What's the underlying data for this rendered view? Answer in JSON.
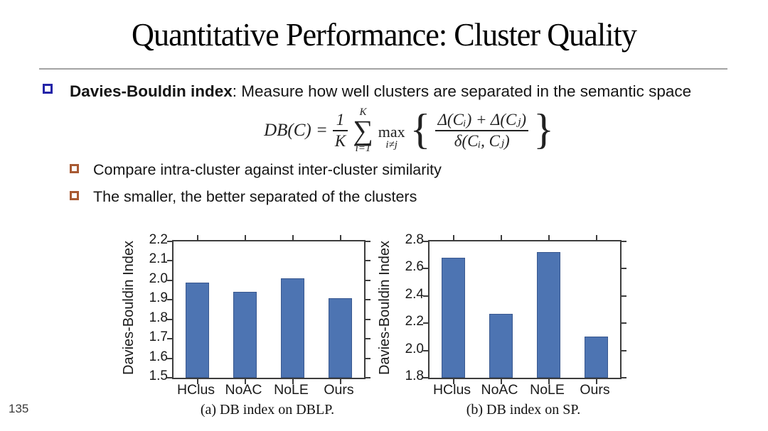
{
  "page_number": "135",
  "title": "Quantitative Performance: Cluster Quality",
  "bullets": {
    "main_lead": "Davies-Bouldin index",
    "main_rest": ": Measure how well clusters are separated in the semantic space",
    "sub1": "Compare intra-cluster against inter-cluster similarity",
    "sub2": "The smaller, the better separated of the clusters"
  },
  "formula": {
    "lhs": "DB(C) =",
    "frac_num": "1",
    "frac_den": "K",
    "sum_sym": "∑",
    "sum_top": "K",
    "sum_bot": "i=1",
    "max_label": "max",
    "max_sub": "i≠j",
    "brace_open": "{",
    "brace_close": "}",
    "inner_num": "Δ(Cᵢ) + Δ(Cⱼ)",
    "inner_den": "δ(Cᵢ, Cⱼ)"
  },
  "colors": {
    "bar": "#4d74b2",
    "bar_edge": "#39588f",
    "bullet_main": "#2424a8",
    "bullet_sub": "#a85a33",
    "rule": "#a3a3a3"
  },
  "chart_data": [
    {
      "type": "bar",
      "title": "(a) DB index on DBLP.",
      "xlabel": "",
      "ylabel": "Davies-Bouldin Index",
      "categories": [
        "HClus",
        "NoAC",
        "NoLE",
        "Ours"
      ],
      "values": [
        1.99,
        1.94,
        2.01,
        1.91
      ],
      "ylim": [
        1.5,
        2.2
      ],
      "yticks": [
        1.5,
        1.6,
        1.7,
        1.8,
        1.9,
        2.0,
        2.1,
        2.2
      ],
      "bar_width_pct": 12,
      "grid": false,
      "legend": null
    },
    {
      "type": "bar",
      "title": "(b) DB index on SP.",
      "xlabel": "",
      "ylabel": "Davies-Bouldin Index",
      "categories": [
        "HClus",
        "NoAC",
        "NoLE",
        "Ours"
      ],
      "values": [
        2.68,
        2.27,
        2.72,
        2.1
      ],
      "ylim": [
        1.8,
        2.8
      ],
      "yticks": [
        1.8,
        2.0,
        2.2,
        2.4,
        2.6,
        2.8
      ],
      "bar_width_pct": 12,
      "grid": false,
      "legend": null
    }
  ]
}
